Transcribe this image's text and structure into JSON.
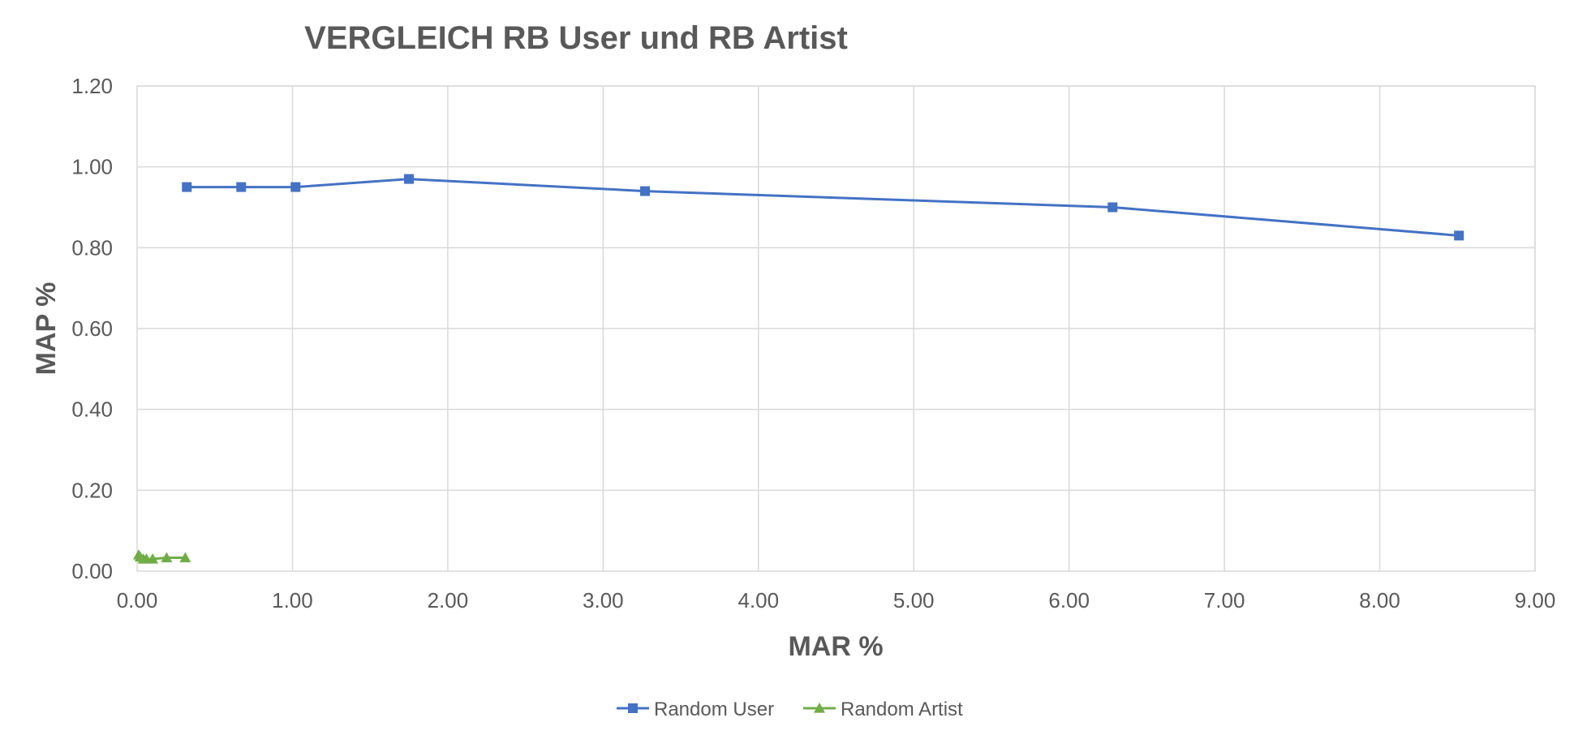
{
  "chart_data": {
    "type": "line",
    "title": "VERGLEICH RB User und RB Artist",
    "xlabel": "MAR %",
    "ylabel": "MAP %",
    "xlim": [
      0,
      9
    ],
    "ylim": [
      0,
      1.2
    ],
    "x_ticks": [
      "0.00",
      "1.00",
      "2.00",
      "3.00",
      "4.00",
      "5.00",
      "6.00",
      "7.00",
      "8.00",
      "9.00"
    ],
    "y_ticks": [
      "0.00",
      "0.20",
      "0.40",
      "0.60",
      "0.80",
      "1.00",
      "1.20"
    ],
    "grid": true,
    "legend_position": "bottom",
    "series": [
      {
        "name": "Random User",
        "color": "#4472c4",
        "marker": "square",
        "x": [
          0.32,
          0.67,
          1.02,
          1.75,
          3.27,
          6.28,
          8.51
        ],
        "y": [
          0.95,
          0.95,
          0.95,
          0.97,
          0.94,
          0.9,
          0.83
        ]
      },
      {
        "name": "Random Artist",
        "color": "#70ad47",
        "marker": "triangle",
        "x": [
          0.01,
          0.02,
          0.04,
          0.06,
          0.1,
          0.19,
          0.31
        ],
        "y": [
          0.04,
          0.035,
          0.03,
          0.03,
          0.03,
          0.033,
          0.033
        ]
      }
    ]
  }
}
